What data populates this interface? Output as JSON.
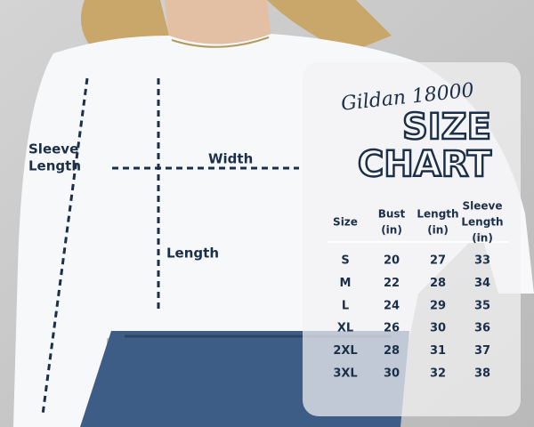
{
  "garment_labels": {
    "sleeve_length": [
      "Sleeve",
      "Length"
    ],
    "width": "Width",
    "length": "Length"
  },
  "size_chart": {
    "brand": "Gildan 18000",
    "title": [
      "SIZE",
      "CHART"
    ],
    "table": {
      "header": [
        [
          "Size"
        ],
        [
          "Bust",
          "(in)"
        ],
        [
          "Length",
          "(in)"
        ],
        [
          "Sleeve",
          "Length",
          "(in)"
        ]
      ],
      "rows": [
        [
          "S",
          "20",
          "27",
          "33"
        ],
        [
          "M",
          "22",
          "28",
          "34"
        ],
        [
          "L",
          "24",
          "29",
          "35"
        ],
        [
          "XL",
          "26",
          "30",
          "36"
        ],
        [
          "2XL",
          "28",
          "31",
          "37"
        ],
        [
          "3XL",
          "30",
          "32",
          "38"
        ]
      ]
    }
  }
}
